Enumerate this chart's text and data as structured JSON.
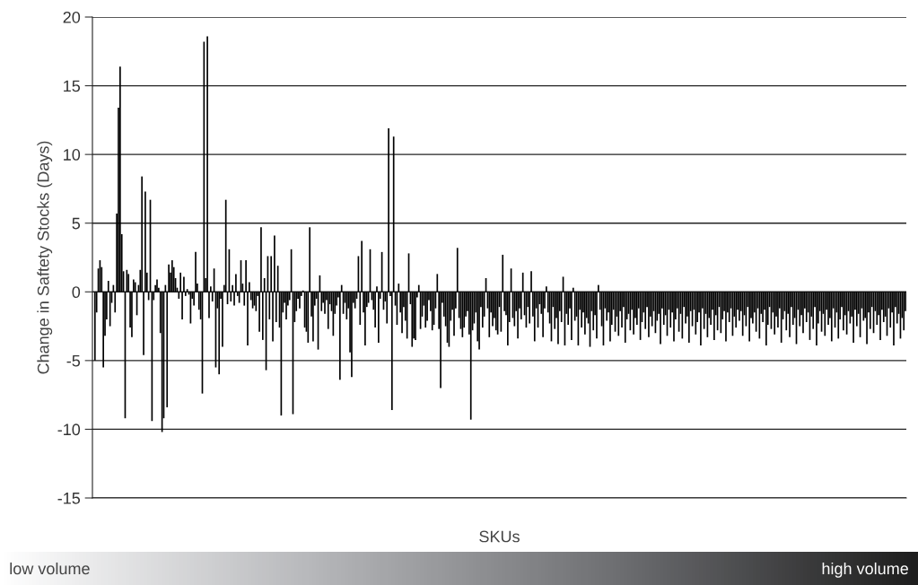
{
  "chart_data": {
    "type": "bar",
    "xlabel": "SKUs",
    "ylabel": "Change in Saftety Stocks (Days)",
    "color": "#000000",
    "ylim": [
      -15,
      20
    ],
    "yticks": [
      -15,
      -10,
      -5,
      0,
      5,
      10,
      15,
      20
    ],
    "grid": "y",
    "tick_labels": "y",
    "legend": false,
    "annotations": [
      "low volume",
      "high volume"
    ],
    "values": [
      -5,
      -1.5,
      1.7,
      2.3,
      1.8,
      -5.5,
      -3.2,
      -2,
      0.8,
      -2.5,
      -0.8,
      0.5,
      -1.5,
      5.7,
      13.4,
      16.4,
      4.2,
      1.5,
      -9.2,
      1.6,
      1.3,
      -2.6,
      -3.3,
      0.9,
      0.7,
      -1.7,
      0.5,
      1.6,
      8.4,
      -4.6,
      7.3,
      1.4,
      -0.6,
      6.7,
      -9.4,
      -0.6,
      0.5,
      0.9,
      0.3,
      -3,
      -10.2,
      -9.2,
      0.5,
      -8.4,
      2,
      1.4,
      2.3,
      1.8,
      1,
      0.3,
      -0.5,
      1.4,
      -2,
      1.1,
      -0.3,
      0.2,
      -0.2,
      -2.3,
      -0.5,
      -1,
      2.9,
      0.6,
      -1.3,
      -2,
      -7.4,
      18.2,
      1,
      18.6,
      -1.9,
      0.4,
      -0.7,
      1.7,
      -5.5,
      -1.2,
      -6,
      -0.5,
      -4,
      0.5,
      6.7,
      -0.9,
      3.1,
      -0.7,
      0.5,
      -1,
      1.3,
      -0.3,
      -0.8,
      2.3,
      0.6,
      -1,
      2.3,
      -3.9,
      0.7,
      -0.6,
      -1.2,
      -1,
      -1.4,
      -0.3,
      -2.9,
      4.7,
      -3.5,
      1,
      -5.7,
      2.6,
      -2,
      2.6,
      -3.6,
      4.1,
      -2.2,
      1.9,
      -2.6,
      -9,
      -1.5,
      -0.8,
      -2,
      -1,
      -0.6,
      3.1,
      -8.9,
      -2.2,
      -1.4,
      -0.5,
      -1.2,
      -0.3,
      0.1,
      -2.6,
      -2.9,
      -3.7,
      4.7,
      -1.8,
      -3.6,
      -1,
      -0.5,
      -4.2,
      1.2,
      -1.4,
      -0.8,
      -1.6,
      -0.6,
      -2.7,
      -0.9,
      -1.4,
      -3.2,
      -1.6,
      -1,
      -0.4,
      -6.4,
      0.5,
      -1.6,
      -0.8,
      -2,
      -1.2,
      -4.4,
      -6.2,
      -0.8,
      -1.2,
      -0.5,
      2.6,
      -2.4,
      3.7,
      -1.5,
      -3.9,
      -1.1,
      -0.8,
      3.1,
      -0.6,
      -1.3,
      -2.6,
      0.4,
      -3.7,
      -0.5,
      2.9,
      -1.3,
      -0.7,
      -2.3,
      11.9,
      -0.3,
      -8.6,
      11.3,
      -1,
      -2.4,
      0.6,
      -1.5,
      -3,
      -1.1,
      -2.1,
      -3.4,
      2.8,
      -0.9,
      -4,
      -3.4,
      -3.5,
      -0.4,
      0.5,
      -2.7,
      -1.8,
      -1,
      -2.6,
      -2.1,
      -0.6,
      -1.4,
      -2.8,
      -2.4,
      -1.2,
      1.3,
      -2.7,
      -7,
      -0.8,
      -1.8,
      -2.5,
      -3.7,
      -4,
      -2.1,
      -1.3,
      -3.2,
      -1.2,
      3.2,
      -1.9,
      -2.7,
      -3.3,
      -2.6,
      -1.8,
      -1.4,
      -3.1,
      -9.3,
      -2.8,
      -2.3,
      -1.5,
      -3.6,
      -4.2,
      -1.1,
      -2.6,
      -1.8,
      1,
      -1.2,
      -3.3,
      -1.5,
      -2.5,
      -1.9,
      -2.8,
      -3.1,
      -1.1,
      -2.9,
      2.7,
      -1.4,
      -1.7,
      -3.9,
      -2.2,
      1.7,
      -1.9,
      -2.5,
      -1.4,
      -3.4,
      -1.2,
      -2,
      1.4,
      -1.7,
      -2.6,
      -1.1,
      -2.3,
      1.5,
      -1.8,
      -3.6,
      -1.2,
      -2.6,
      -0.9,
      -1.6,
      -3.3,
      -1.2,
      0.4,
      -1.5,
      -2.3,
      -3.6,
      -1.1,
      -2.7,
      -1.9,
      -3.8,
      -1.4,
      -2.2,
      1.1,
      -3.9,
      -1.6,
      -2.4,
      -1.2,
      -3.5,
      0.3,
      -2.1,
      -1.8,
      -3.9,
      -1.3,
      -2.6,
      -1.5,
      -3.1,
      -1.9,
      -2.3,
      -4,
      -1.4,
      -2.8,
      -1.7,
      -3.4,
      0.5,
      -1.3,
      -2.5,
      -3.9,
      -1.2,
      -2.1,
      -1.5,
      -3.6,
      -2.4,
      -1.3,
      -2.9,
      -1.8,
      -3.2,
      -1.4,
      -2.6,
      -1.1,
      -3.7,
      -2,
      -1.6,
      -2.8,
      -1.3,
      -3.1,
      -1.9,
      -2.4,
      -1.2,
      -3.5,
      -2.2,
      -1.5,
      -2.7,
      -1.1,
      -3.3,
      -1.8,
      -2.5,
      -1.4,
      -3,
      -2.1,
      -1.6,
      -3.8,
      -1.2,
      -2.4,
      -1.7,
      -3.2,
      -1.3,
      -2.6,
      -1.5,
      -3.6,
      -2,
      -1.2,
      -2.9,
      -1.6,
      -3.4,
      -1.1,
      -2.3,
      -1.8,
      -3.7,
      -1.4,
      -2.5,
      -1.3,
      -3.1,
      -2.2,
      -1.5,
      -3.9,
      -1.2,
      -2.7,
      -1.6,
      -3.3,
      -1.9,
      -2.4,
      -1.3,
      -3.5,
      -1.7,
      -2.8,
      -1.1,
      -3,
      -2,
      -1.4,
      -3.6,
      -1.5,
      -2.2,
      -1.2,
      -3.2,
      -1.8,
      -2.6,
      -1.3,
      -2.1,
      -1.4,
      -3.2,
      -1.7,
      -2.5,
      -1.1,
      -3.6,
      -1.9,
      -2.3,
      -1.5,
      -2.9,
      -1.2,
      -3.4,
      -1.6,
      -2.2,
      -1.3,
      -3.9,
      -2.4,
      -1.1,
      -2.7,
      -1.5,
      -3.1,
      -1.8,
      -2.6,
      -1.2,
      -3.7,
      -2,
      -1.4,
      -2.8,
      -1.6,
      -3.3,
      -1.1,
      -2.4,
      -1.9,
      -3.8,
      -1.3,
      -2.5,
      -1.7,
      -3,
      -1.2,
      -2.2,
      -1.5,
      -3.5,
      -1.8,
      -2.7,
      -1.1,
      -3.9,
      -2.3,
      -1.4,
      -2.9,
      -1.6,
      -3.2,
      -1.3,
      -2.4,
      -1.9,
      -3.6,
      -1.2,
      -2.6,
      -1.5,
      -3.4,
      -2,
      -1.1,
      -2.8,
      -1.7,
      -3.1,
      -1.4,
      -2.3,
      -1.8,
      -3.7,
      -1.3,
      -2.5,
      -1.6,
      -3.3,
      -1.2,
      -2.1,
      -1.9,
      -3.8,
      -1.5,
      -2.7,
      -1.1,
      -3,
      -1.4,
      -2.4,
      -1.7,
      -3.5,
      -1.3,
      -2.2,
      -1.8,
      -3.2,
      -1.2,
      -2.6,
      -1.5,
      -3.9,
      -1.1,
      -2.3,
      -1.6,
      -3.4,
      -1.9,
      -2.8,
      -1.4
    ],
    "categories": [
      null,
      null,
      null,
      null,
      null,
      null,
      null,
      null,
      null,
      null,
      null,
      null,
      null,
      null,
      null,
      null,
      null,
      null,
      null,
      null,
      null,
      null,
      null,
      null,
      null,
      null,
      null,
      null,
      null,
      null,
      null,
      null,
      null,
      null,
      null,
      null,
      null,
      null,
      null,
      null,
      null,
      null,
      null,
      null,
      null,
      null,
      null,
      null,
      null,
      null,
      null,
      null,
      null,
      null,
      null,
      null,
      null,
      null,
      null,
      null,
      null,
      null,
      null,
      null,
      null,
      null,
      null,
      null,
      null,
      null,
      null,
      null,
      null,
      null,
      null,
      null,
      null,
      null,
      null,
      null,
      null,
      null,
      null,
      null,
      null,
      null,
      null,
      null,
      null,
      null,
      null,
      null,
      null,
      null,
      null,
      null,
      null,
      null,
      null,
      null,
      null,
      null,
      null,
      null,
      null,
      null,
      null,
      null,
      null,
      null,
      null,
      null,
      null,
      null,
      null,
      null,
      null,
      null,
      null,
      null,
      null,
      null,
      null,
      null,
      null,
      null,
      null,
      null,
      null,
      null,
      null,
      null,
      null,
      null,
      null,
      null,
      null,
      null,
      null,
      null,
      null,
      null,
      null,
      null,
      null,
      null,
      null,
      null,
      null,
      null,
      null,
      null,
      null,
      null,
      null,
      null,
      null,
      null,
      null,
      null,
      null,
      null,
      null,
      null,
      null,
      null,
      null,
      null,
      null,
      null,
      null,
      null,
      null,
      null,
      null,
      null,
      null,
      null,
      null,
      null,
      null,
      null,
      null,
      null,
      null,
      null,
      null,
      null,
      null,
      null,
      null,
      null,
      null,
      null,
      null,
      null,
      null,
      null,
      null,
      null,
      null,
      null,
      null,
      null,
      null,
      null,
      null,
      null,
      null,
      null,
      null,
      null,
      null,
      null,
      null,
      null,
      null,
      null,
      null,
      null,
      null,
      null,
      null,
      null,
      null,
      null,
      null,
      null,
      null,
      null,
      null,
      null,
      null,
      null,
      null,
      null,
      null,
      null,
      null,
      null,
      null,
      null,
      null,
      null,
      null,
      null,
      null,
      null,
      null,
      null,
      null,
      null,
      null,
      null,
      null,
      null,
      null,
      null,
      null,
      null,
      null,
      null,
      null,
      null,
      null,
      null,
      null,
      null,
      null,
      null,
      null,
      null,
      null,
      null,
      null,
      null,
      null,
      null,
      null,
      null,
      null,
      null,
      null,
      null,
      null,
      null,
      null,
      null,
      null,
      null,
      null,
      null,
      null,
      null,
      null,
      null,
      null,
      null,
      null,
      null,
      null,
      null,
      null,
      null,
      null,
      null,
      null,
      null,
      null,
      null,
      null,
      null,
      null,
      null,
      null,
      null,
      null,
      null,
      null,
      null,
      null,
      null,
      null,
      null,
      null,
      null,
      null,
      null,
      null,
      null,
      null,
      null,
      null,
      null,
      null,
      null,
      null,
      null,
      null,
      null,
      null,
      null,
      null,
      null,
      null,
      null,
      null,
      null,
      null,
      null,
      null,
      null,
      null,
      null,
      null,
      null,
      null,
      null,
      null,
      null,
      null,
      null,
      null,
      null,
      null,
      null,
      null,
      null,
      null,
      null,
      null,
      null,
      null,
      null,
      null,
      null,
      null,
      null,
      null,
      null,
      null,
      null,
      null,
      null,
      null,
      null,
      null,
      null,
      null,
      null,
      null,
      null,
      null,
      null,
      null,
      null,
      null,
      null,
      null,
      null,
      null,
      null,
      null,
      null,
      null,
      null,
      null,
      null,
      null,
      null,
      null,
      null,
      null,
      null,
      null,
      null,
      null,
      null,
      null,
      null,
      null,
      null,
      null,
      null,
      null,
      null,
      null,
      null,
      null,
      null,
      null,
      null,
      null,
      null,
      null,
      null,
      null,
      null,
      null,
      null,
      null,
      null,
      null,
      null,
      null,
      null,
      null,
      null,
      null,
      null,
      null,
      null,
      null,
      null,
      null,
      null,
      null,
      null,
      null,
      null,
      null,
      null,
      null,
      null,
      null,
      null,
      null,
      null,
      null,
      null,
      null,
      null,
      null,
      null,
      null,
      null,
      null,
      null,
      null,
      null,
      null,
      null,
      null,
      null
    ]
  }
}
